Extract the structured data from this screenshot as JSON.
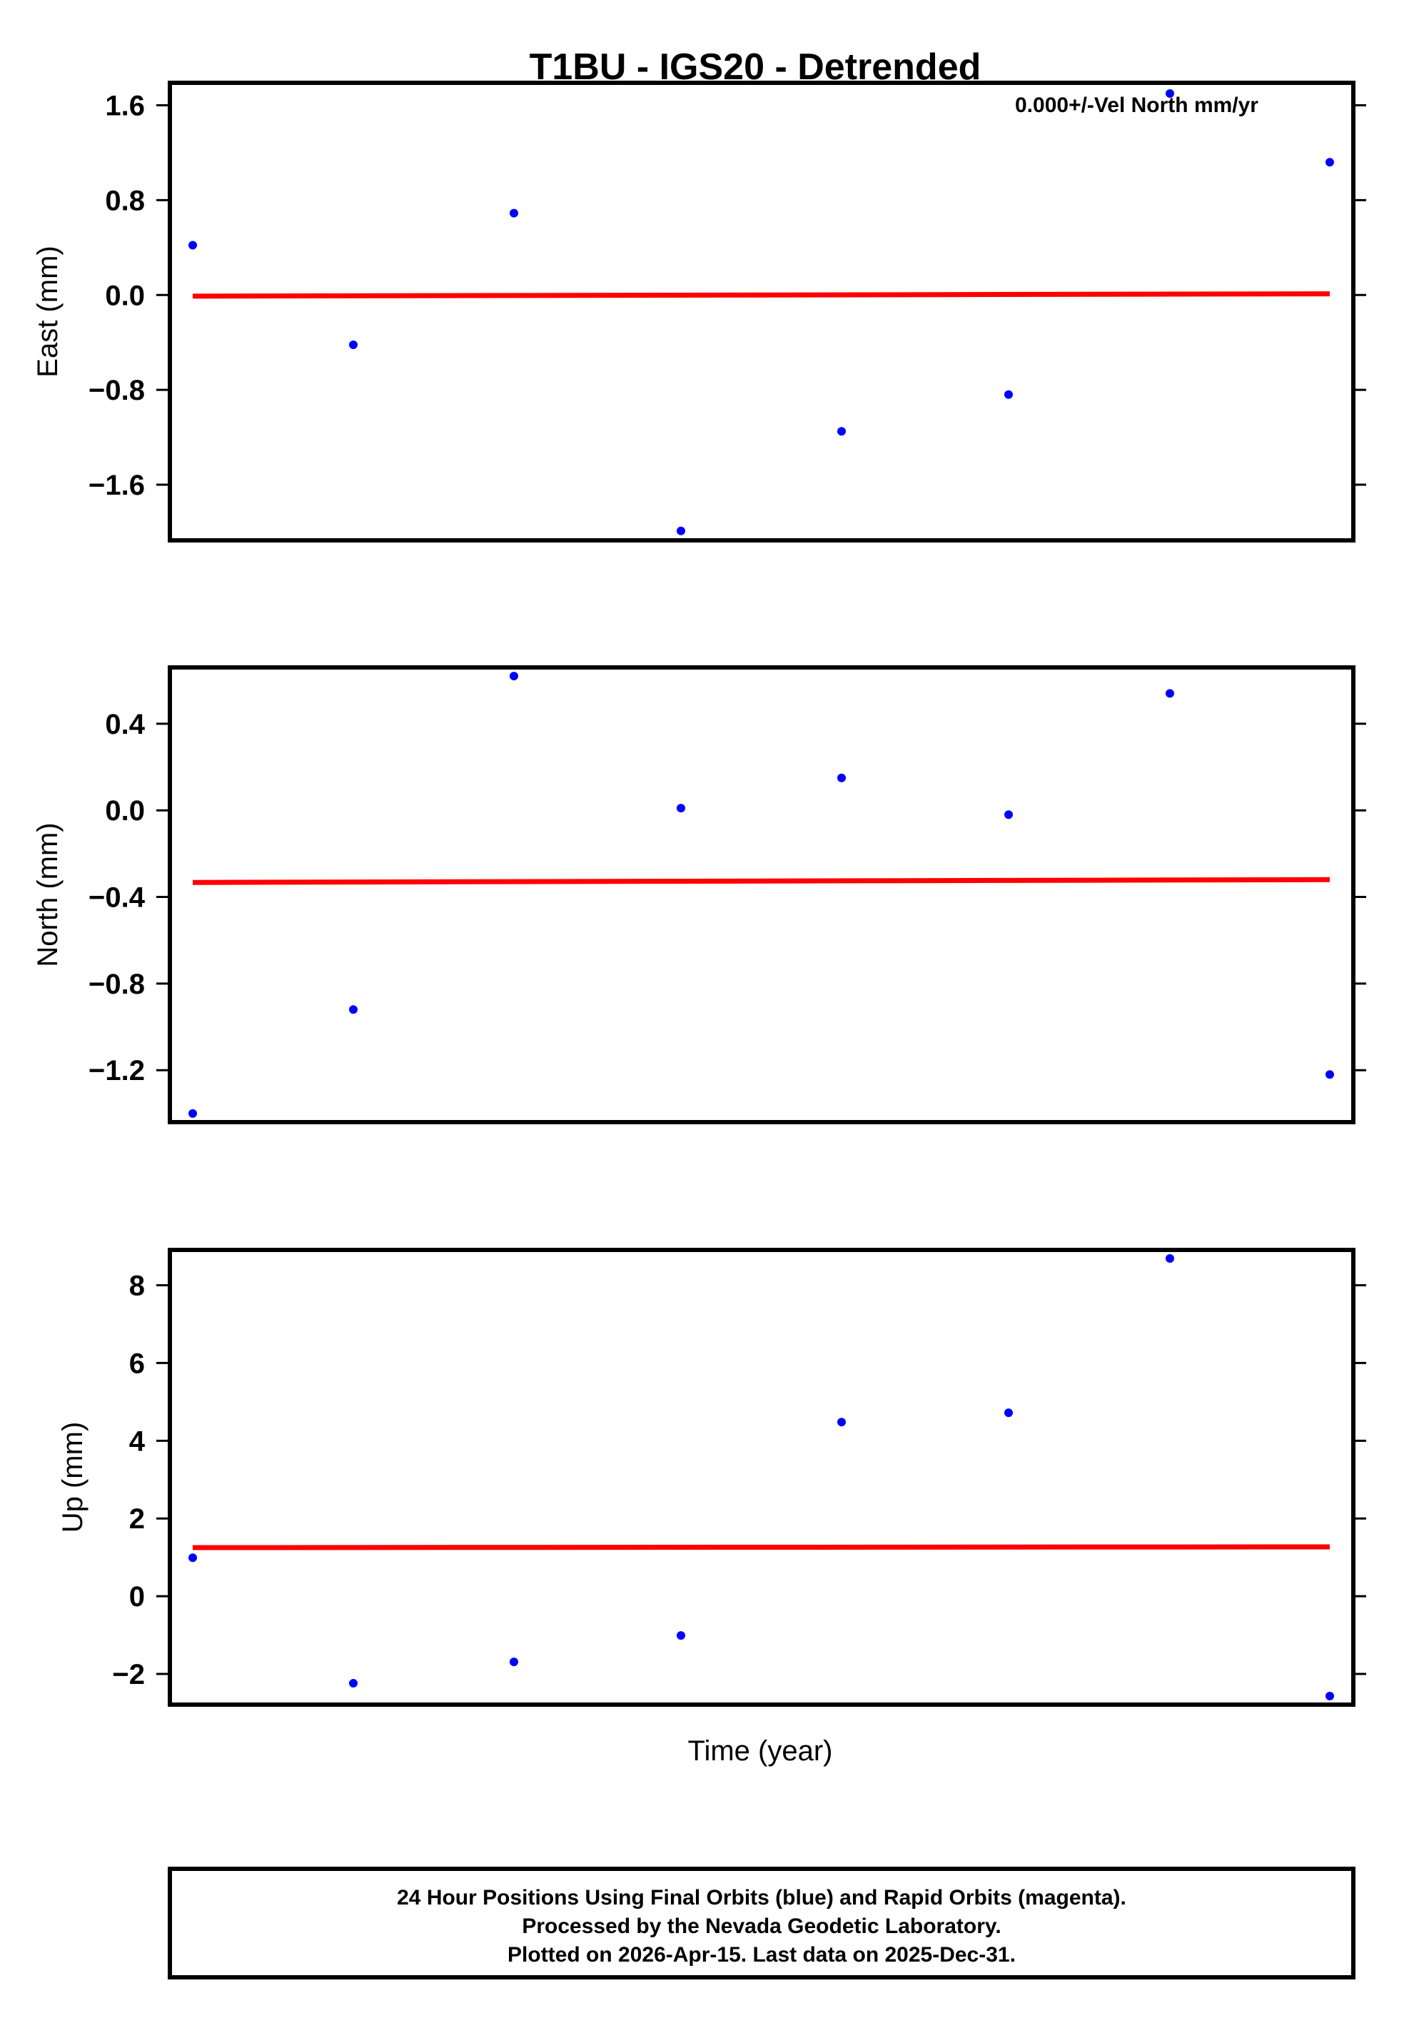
{
  "figure": {
    "title": "T1BU - IGS20 - Detrended",
    "xlabel": "Time (year)",
    "annotation": "0.000+/-Vel North mm/yr",
    "footer": {
      "lines": [
        "24 Hour Positions Using Final Orbits (blue) and Rapid Orbits (magenta).",
        "Processed by the Nevada Geodetic Laboratory.",
        "Plotted on 2026-Apr-15. Last data on 2025-Dec-31."
      ]
    },
    "colors": {
      "points": "#0000ff",
      "trend": "#ff0000",
      "frame": "#000000"
    }
  },
  "chart_data": [
    {
      "type": "scatter",
      "title": "T1BU - IGS20 - Detrended",
      "panel": "East",
      "xlabel": "",
      "ylabel": "East (mm)",
      "ylim": [
        -2.07,
        1.79
      ],
      "yticks": [
        1.6,
        0.8,
        0.0,
        -0.8,
        -1.6
      ],
      "ytick_labels": [
        "1.6",
        "0.8",
        "0.0",
        "−0.8",
        "−1.6"
      ],
      "grid": false,
      "x": [
        0,
        1,
        2,
        3,
        4,
        5,
        6,
        7
      ],
      "series": [
        {
          "name": "Final Orbits (blue)",
          "color": "#0000ff",
          "values": [
            0.42,
            -0.42,
            0.69,
            -1.99,
            -1.15,
            -0.84,
            1.7,
            1.12
          ]
        },
        {
          "name": "Trend",
          "color": "#ff0000",
          "kind": "line",
          "values": [
            -0.01,
            0.01
          ]
        }
      ],
      "annotations": [
        "0.000+/-Vel North mm/yr"
      ]
    },
    {
      "type": "scatter",
      "panel": "North",
      "xlabel": "",
      "ylabel": "North (mm)",
      "ylim": [
        -1.44,
        0.66
      ],
      "yticks": [
        0.4,
        0.0,
        -0.4,
        -0.8,
        -1.2
      ],
      "ytick_labels": [
        "0.4",
        "0.0",
        "−0.4",
        "−0.8",
        "−1.2"
      ],
      "grid": false,
      "x": [
        0,
        1,
        2,
        3,
        4,
        5,
        6,
        7
      ],
      "series": [
        {
          "name": "Final Orbits (blue)",
          "color": "#0000ff",
          "values": [
            -1.4,
            -0.92,
            0.62,
            0.01,
            0.15,
            -0.02,
            0.54,
            -1.22
          ]
        },
        {
          "name": "Trend",
          "color": "#ff0000",
          "kind": "line",
          "values": [
            -0.333,
            -0.32
          ]
        }
      ]
    },
    {
      "type": "scatter",
      "panel": "Up",
      "xlabel": "Time (year)",
      "ylabel": "Up (mm)",
      "ylim": [
        -2.79,
        8.91
      ],
      "yticks": [
        8,
        6,
        4,
        2,
        0,
        -2
      ],
      "ytick_labels": [
        "8",
        "6",
        "4",
        "2",
        "0",
        "−2"
      ],
      "grid": false,
      "x": [
        0,
        1,
        2,
        3,
        4,
        5,
        6,
        7
      ],
      "series": [
        {
          "name": "Final Orbits (blue)",
          "color": "#0000ff",
          "values": [
            0.99,
            -2.24,
            -1.69,
            -1.01,
            4.48,
            4.72,
            8.69,
            -2.57
          ]
        },
        {
          "name": "Trend",
          "color": "#ff0000",
          "kind": "line",
          "values": [
            1.25,
            1.27
          ]
        }
      ]
    }
  ]
}
